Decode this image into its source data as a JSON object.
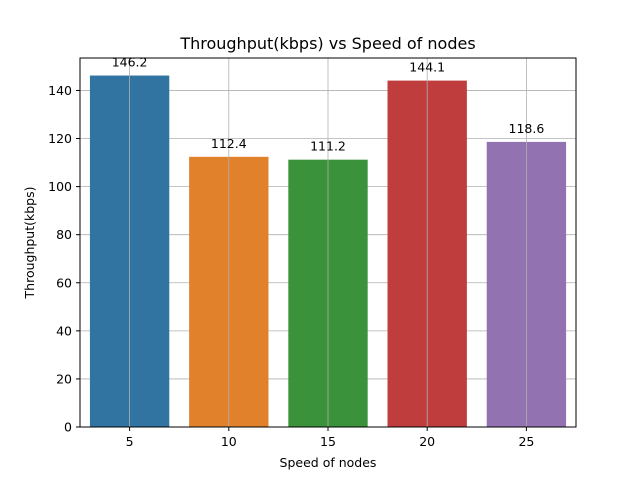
{
  "chart_data": {
    "type": "bar",
    "title": "Throughput(kbps) vs Speed of nodes",
    "xlabel": "Speed of nodes",
    "ylabel": "Throughput(kbps)",
    "categories": [
      "5",
      "10",
      "15",
      "20",
      "25"
    ],
    "values": [
      146.2,
      112.4,
      111.2,
      144.1,
      118.6
    ],
    "data_labels": [
      "146.2",
      "112.4",
      "111.2",
      "144.1",
      "118.6"
    ],
    "colors": [
      "#3274a1",
      "#e1812c",
      "#3a923a",
      "#c03d3e",
      "#9372b2"
    ],
    "ylim": [
      0,
      153.5
    ],
    "yticks": [
      0,
      20,
      40,
      60,
      80,
      100,
      120,
      140
    ],
    "grid": true,
    "legend": "none"
  }
}
